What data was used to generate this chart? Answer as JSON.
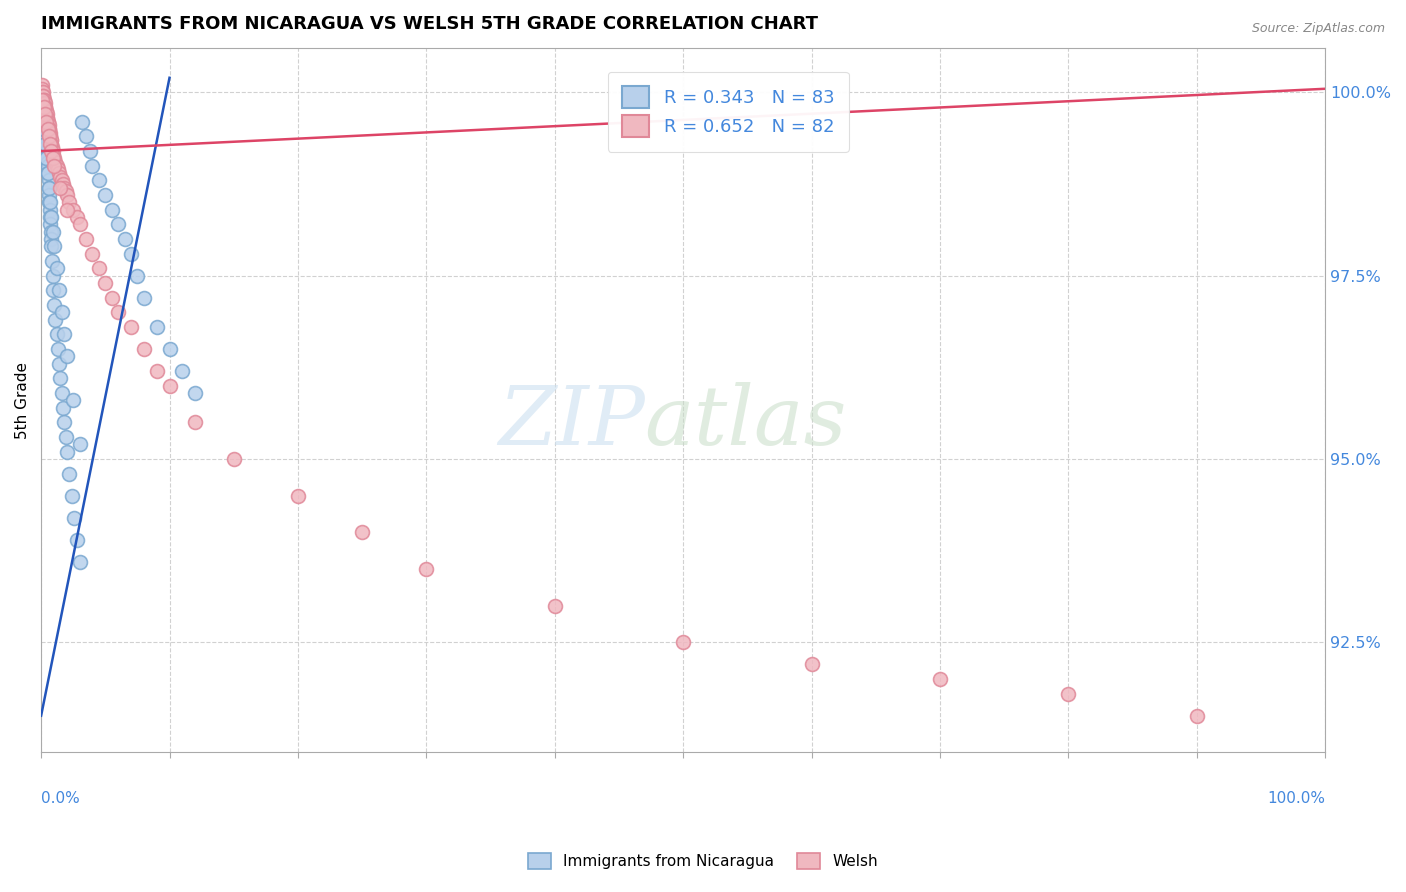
{
  "title": "IMMIGRANTS FROM NICARAGUA VS WELSH 5TH GRADE CORRELATION CHART",
  "source": "Source: ZipAtlas.com",
  "ylabel": "5th Grade",
  "ytick_vals": [
    92.5,
    95.0,
    97.5,
    100.0
  ],
  "ytick_labels": [
    "92.5%",
    "95.0%",
    "97.5%",
    "100.0%"
  ],
  "legend1_label": "R = 0.343   N = 83",
  "legend2_label": "R = 0.652   N = 82",
  "legend_item1": "Immigrants from Nicaragua",
  "legend_item2": "Welsh",
  "blue_face": "#b8d0eb",
  "blue_edge": "#7aa8d0",
  "pink_face": "#f0b8c0",
  "pink_edge": "#e08898",
  "line_blue": "#2255bb",
  "line_pink": "#dd4466",
  "blue_trend_x": [
    0,
    10
  ],
  "blue_trend_y": [
    91.5,
    100.2
  ],
  "pink_trend_x": [
    0,
    100
  ],
  "pink_trend_y": [
    99.2,
    100.05
  ],
  "xlim": [
    0,
    100
  ],
  "ylim": [
    91.0,
    100.6
  ],
  "blue_scatter_x": [
    0.05,
    0.08,
    0.1,
    0.12,
    0.15,
    0.18,
    0.2,
    0.22,
    0.25,
    0.28,
    0.3,
    0.32,
    0.35,
    0.38,
    0.4,
    0.42,
    0.45,
    0.48,
    0.5,
    0.52,
    0.55,
    0.58,
    0.6,
    0.62,
    0.65,
    0.68,
    0.7,
    0.72,
    0.75,
    0.78,
    0.8,
    0.85,
    0.9,
    0.95,
    1.0,
    1.1,
    1.2,
    1.3,
    1.4,
    1.5,
    1.6,
    1.7,
    1.8,
    1.9,
    2.0,
    2.2,
    2.4,
    2.6,
    2.8,
    3.0,
    3.2,
    3.5,
    3.8,
    4.0,
    4.5,
    5.0,
    5.5,
    6.0,
    6.5,
    7.0,
    7.5,
    8.0,
    9.0,
    10.0,
    11.0,
    12.0,
    0.1,
    0.2,
    0.3,
    0.4,
    0.5,
    0.6,
    0.7,
    0.8,
    0.9,
    1.0,
    1.2,
    1.4,
    1.6,
    1.8,
    2.0,
    2.5,
    3.0
  ],
  "blue_scatter_y": [
    99.9,
    99.85,
    99.8,
    99.78,
    99.75,
    99.7,
    99.65,
    99.6,
    99.55,
    99.5,
    99.45,
    99.4,
    99.35,
    99.3,
    99.25,
    99.2,
    99.15,
    99.1,
    99.05,
    99.0,
    98.9,
    98.8,
    98.7,
    98.6,
    98.5,
    98.4,
    98.3,
    98.2,
    98.1,
    98.0,
    97.9,
    97.7,
    97.5,
    97.3,
    97.1,
    96.9,
    96.7,
    96.5,
    96.3,
    96.1,
    95.9,
    95.7,
    95.5,
    95.3,
    95.1,
    94.8,
    94.5,
    94.2,
    93.9,
    93.6,
    99.6,
    99.4,
    99.2,
    99.0,
    98.8,
    98.6,
    98.4,
    98.2,
    98.0,
    97.8,
    97.5,
    97.2,
    96.8,
    96.5,
    96.2,
    95.9,
    99.7,
    99.5,
    99.3,
    99.1,
    98.9,
    98.7,
    98.5,
    98.3,
    98.1,
    97.9,
    97.6,
    97.3,
    97.0,
    96.7,
    96.4,
    95.8,
    95.2
  ],
  "pink_scatter_x": [
    0.05,
    0.08,
    0.1,
    0.12,
    0.15,
    0.18,
    0.2,
    0.22,
    0.25,
    0.28,
    0.3,
    0.32,
    0.35,
    0.38,
    0.4,
    0.42,
    0.45,
    0.48,
    0.5,
    0.52,
    0.55,
    0.58,
    0.6,
    0.62,
    0.65,
    0.68,
    0.7,
    0.72,
    0.75,
    0.78,
    0.8,
    0.85,
    0.9,
    0.95,
    1.0,
    1.1,
    1.2,
    1.3,
    1.4,
    1.5,
    1.6,
    1.7,
    1.8,
    1.9,
    2.0,
    2.2,
    2.5,
    2.8,
    3.0,
    3.5,
    4.0,
    4.5,
    5.0,
    5.5,
    6.0,
    7.0,
    8.0,
    9.0,
    10.0,
    12.0,
    15.0,
    20.0,
    25.0,
    30.0,
    40.0,
    50.0,
    60.0,
    70.0,
    80.0,
    90.0,
    0.1,
    0.2,
    0.3,
    0.4,
    0.5,
    0.6,
    0.7,
    0.8,
    0.9,
    1.0,
    1.5,
    2.0
  ],
  "pink_scatter_y": [
    100.1,
    100.05,
    100.0,
    100.0,
    99.95,
    99.95,
    99.9,
    99.9,
    99.85,
    99.85,
    99.8,
    99.8,
    99.75,
    99.75,
    99.7,
    99.7,
    99.65,
    99.65,
    99.6,
    99.6,
    99.55,
    99.55,
    99.5,
    99.5,
    99.45,
    99.45,
    99.4,
    99.4,
    99.35,
    99.35,
    99.3,
    99.25,
    99.2,
    99.15,
    99.1,
    99.05,
    99.0,
    98.95,
    98.9,
    98.85,
    98.8,
    98.75,
    98.7,
    98.65,
    98.6,
    98.5,
    98.4,
    98.3,
    98.2,
    98.0,
    97.8,
    97.6,
    97.4,
    97.2,
    97.0,
    96.8,
    96.5,
    96.2,
    96.0,
    95.5,
    95.0,
    94.5,
    94.0,
    93.5,
    93.0,
    92.5,
    92.2,
    92.0,
    91.8,
    91.5,
    99.9,
    99.8,
    99.7,
    99.6,
    99.5,
    99.4,
    99.3,
    99.2,
    99.1,
    99.0,
    98.7,
    98.4
  ]
}
